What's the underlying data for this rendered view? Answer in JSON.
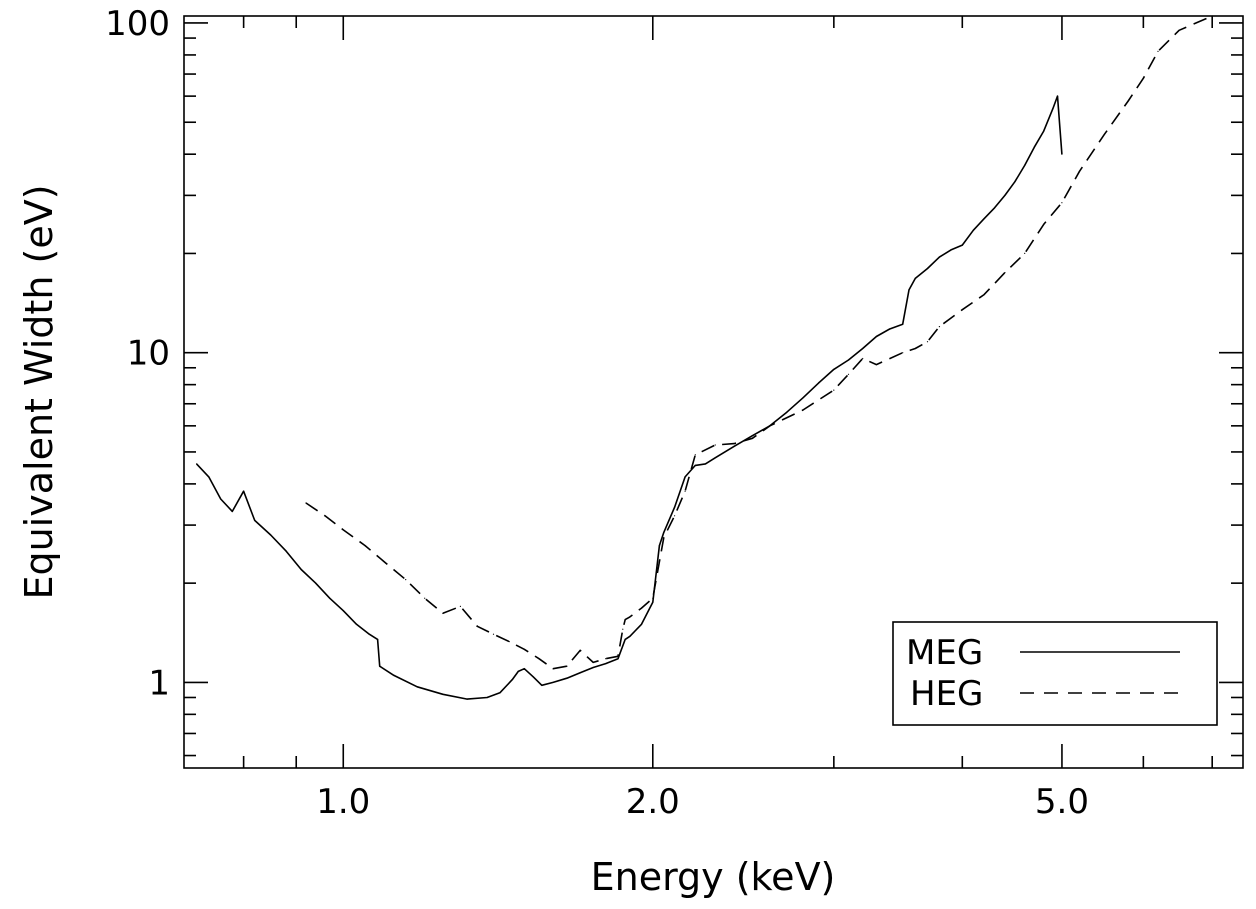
{
  "chart_data": {
    "type": "line",
    "title": "",
    "xlabel": "Energy (keV)",
    "ylabel": "Equivalent Width (eV)",
    "xscale": "log",
    "yscale": "log",
    "xlim": [
      0.7,
      7.5
    ],
    "ylim": [
      0.55,
      105
    ],
    "x_tick_labels": [
      {
        "value": 1.0,
        "label": "1.0"
      },
      {
        "value": 2.0,
        "label": "2.0"
      },
      {
        "value": 5.0,
        "label": "5.0"
      }
    ],
    "y_tick_labels": [
      {
        "value": 1,
        "label": "1"
      },
      {
        "value": 10,
        "label": "10"
      },
      {
        "value": 100,
        "label": "100"
      }
    ],
    "legend": {
      "position": "bottom-right",
      "box": true
    },
    "series": [
      {
        "name": "MEG",
        "style": "solid",
        "x": [
          0.72,
          0.74,
          0.76,
          0.78,
          0.8,
          0.82,
          0.85,
          0.88,
          0.91,
          0.94,
          0.97,
          1.0,
          1.03,
          1.06,
          1.08,
          1.085,
          1.12,
          1.18,
          1.25,
          1.32,
          1.38,
          1.42,
          1.46,
          1.48,
          1.5,
          1.53,
          1.56,
          1.6,
          1.65,
          1.7,
          1.75,
          1.8,
          1.85,
          1.88,
          1.9,
          1.95,
          2.0,
          2.03,
          2.05,
          2.1,
          2.15,
          2.2,
          2.25,
          2.3,
          2.4,
          2.5,
          2.6,
          2.7,
          2.8,
          2.9,
          3.0,
          3.1,
          3.2,
          3.3,
          3.4,
          3.5,
          3.55,
          3.6,
          3.7,
          3.8,
          3.9,
          4.0,
          4.1,
          4.2,
          4.3,
          4.4,
          4.5,
          4.6,
          4.7,
          4.8,
          4.9,
          4.95,
          5.0
        ],
        "y": [
          4.6,
          4.2,
          3.6,
          3.3,
          3.8,
          3.1,
          2.8,
          2.5,
          2.2,
          2.0,
          1.8,
          1.65,
          1.5,
          1.4,
          1.35,
          1.12,
          1.05,
          0.97,
          0.92,
          0.89,
          0.9,
          0.93,
          1.02,
          1.08,
          1.1,
          1.04,
          0.98,
          1.0,
          1.03,
          1.07,
          1.11,
          1.14,
          1.18,
          1.35,
          1.38,
          1.5,
          1.75,
          2.6,
          2.85,
          3.4,
          4.2,
          4.55,
          4.6,
          4.8,
          5.2,
          5.6,
          6.0,
          6.6,
          7.3,
          8.1,
          8.9,
          9.5,
          10.3,
          11.2,
          11.8,
          12.2,
          15.5,
          16.8,
          18.0,
          19.5,
          20.5,
          21.2,
          23.5,
          25.5,
          27.5,
          30.0,
          33.0,
          37.0,
          42.0,
          47.0,
          55.0,
          60.0,
          40.0
        ]
      },
      {
        "name": "HEG",
        "style": "dashed",
        "x": [
          0.92,
          0.96,
          1.0,
          1.05,
          1.1,
          1.15,
          1.2,
          1.25,
          1.3,
          1.35,
          1.4,
          1.45,
          1.5,
          1.55,
          1.6,
          1.65,
          1.7,
          1.75,
          1.8,
          1.85,
          1.87,
          1.88,
          1.9,
          1.95,
          2.0,
          2.05,
          2.1,
          2.15,
          2.2,
          2.3,
          2.4,
          2.5,
          2.6,
          2.8,
          3.0,
          3.1,
          3.2,
          3.3,
          3.5,
          3.6,
          3.7,
          3.8,
          4.0,
          4.2,
          4.4,
          4.6,
          4.8,
          5.0,
          5.2,
          5.5,
          5.8,
          6.0,
          6.2,
          6.5,
          7.0
        ],
        "y": [
          3.5,
          3.2,
          2.9,
          2.6,
          2.3,
          2.05,
          1.8,
          1.62,
          1.7,
          1.48,
          1.4,
          1.33,
          1.26,
          1.18,
          1.1,
          1.12,
          1.25,
          1.15,
          1.18,
          1.2,
          1.45,
          1.55,
          1.58,
          1.68,
          1.8,
          2.75,
          3.2,
          3.8,
          4.9,
          5.25,
          5.3,
          5.5,
          6.0,
          6.7,
          7.7,
          8.6,
          9.6,
          9.2,
          10.0,
          10.3,
          10.8,
          12.0,
          13.5,
          15.0,
          17.5,
          20.0,
          24.5,
          28.5,
          35.5,
          46.0,
          58.0,
          68.0,
          82.0,
          95.0,
          105.0
        ]
      }
    ]
  }
}
